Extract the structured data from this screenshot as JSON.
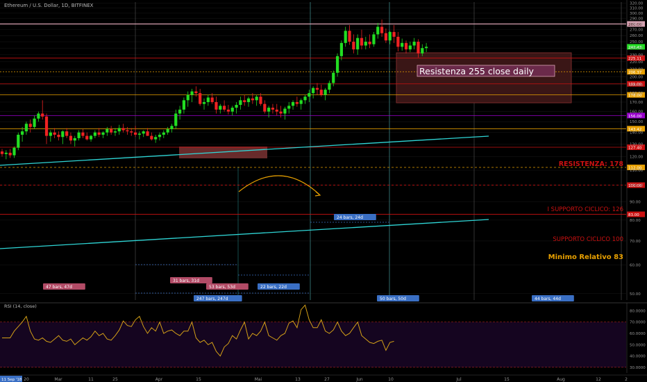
{
  "header": {
    "title": "Ethereum / U.S. Dollar, 1D, BITFINEX"
  },
  "rsi": {
    "label": "RSI (14, close)",
    "ticks": [
      "80.0000",
      "70.0000",
      "60.0000",
      "50.0000",
      "40.0000",
      "30.0000"
    ],
    "tick_values": [
      80,
      70,
      60,
      50,
      40,
      30
    ],
    "band": [
      30,
      70
    ],
    "ylim": [
      25,
      87
    ],
    "values": [
      56,
      56,
      56,
      62,
      66,
      70,
      75,
      62,
      55,
      54,
      56,
      53,
      52,
      55,
      58,
      54,
      53,
      55,
      50,
      53,
      56,
      54,
      57,
      62,
      58,
      60,
      55,
      54,
      58,
      63,
      71,
      67,
      66,
      72,
      75,
      66,
      60,
      65,
      62,
      70,
      60,
      62,
      63,
      60,
      58,
      62,
      62,
      70,
      56,
      52,
      54,
      50,
      52,
      44,
      40,
      48,
      51,
      58,
      55,
      63,
      70,
      55,
      60,
      58,
      62,
      70,
      58,
      56,
      54,
      58,
      60,
      69,
      71,
      65,
      81,
      85,
      72,
      65,
      65,
      72,
      62,
      60,
      63,
      70,
      62,
      58,
      60,
      65,
      70,
      58,
      55,
      52,
      51,
      53,
      54,
      45,
      52,
      53
    ]
  },
  "colors": {
    "up": "#22dd22",
    "down": "#ee2222",
    "trendline": "#2fd6d6",
    "resistance_red": "#cc1111",
    "support_orange": "#e8a000",
    "purple": "#9900cc",
    "pink": "#d9a3b3",
    "grid": "#333333"
  },
  "chart_data": {
    "type": "candlestick",
    "title": "Ethereum / U.S. Dollar, 1D, BITFINEX",
    "ylim": [
      48,
      322
    ],
    "scale": "log",
    "x_ticks": [
      "20",
      "Mar",
      "11",
      "25",
      "Apr",
      "15",
      "Mai",
      "13",
      "27",
      "Jun",
      "10",
      "Jul",
      "15",
      "Aug",
      "12",
      "2"
    ],
    "y_ticks": [
      320,
      310,
      300,
      290,
      280,
      270,
      260,
      250,
      240,
      230,
      220,
      210,
      200,
      190,
      180,
      170,
      160,
      150,
      140,
      130,
      120,
      110,
      100,
      90,
      80,
      70,
      60,
      50
    ],
    "ohlc": [
      [
        124,
        126,
        120,
        122
      ],
      [
        122,
        125,
        118,
        123
      ],
      [
        123,
        126,
        119,
        121
      ],
      [
        121,
        128,
        119,
        127
      ],
      [
        127,
        140,
        125,
        138
      ],
      [
        138,
        145,
        132,
        141
      ],
      [
        141,
        150,
        138,
        148
      ],
      [
        148,
        152,
        140,
        145
      ],
      [
        145,
        156,
        143,
        153
      ],
      [
        153,
        160,
        150,
        158
      ],
      [
        158,
        172,
        152,
        155
      ],
      [
        155,
        158,
        130,
        137
      ],
      [
        137,
        142,
        132,
        140
      ],
      [
        140,
        144,
        135,
        138
      ],
      [
        138,
        141,
        133,
        136
      ],
      [
        136,
        142,
        130,
        141
      ],
      [
        141,
        144,
        135,
        137
      ],
      [
        137,
        140,
        130,
        133
      ],
      [
        133,
        137,
        128,
        135
      ],
      [
        135,
        142,
        133,
        140
      ],
      [
        140,
        143,
        135,
        137
      ],
      [
        137,
        140,
        133,
        134
      ],
      [
        134,
        138,
        132,
        137
      ],
      [
        137,
        142,
        135,
        140
      ],
      [
        140,
        144,
        136,
        138
      ],
      [
        138,
        141,
        135,
        140
      ],
      [
        140,
        145,
        137,
        143
      ],
      [
        143,
        146,
        138,
        140
      ],
      [
        140,
        144,
        137,
        141
      ],
      [
        141,
        147,
        138,
        144
      ],
      [
        144,
        148,
        140,
        142
      ],
      [
        142,
        145,
        138,
        141
      ],
      [
        141,
        144,
        137,
        140
      ],
      [
        140,
        146,
        136,
        138
      ],
      [
        138,
        141,
        134,
        139
      ],
      [
        139,
        142,
        136,
        141
      ],
      [
        141,
        144,
        137,
        137
      ],
      [
        137,
        140,
        133,
        134
      ],
      [
        134,
        138,
        131,
        136
      ],
      [
        136,
        140,
        133,
        138
      ],
      [
        138,
        142,
        135,
        140
      ],
      [
        140,
        145,
        138,
        143
      ],
      [
        143,
        148,
        140,
        146
      ],
      [
        146,
        162,
        143,
        158
      ],
      [
        158,
        166,
        152,
        162
      ],
      [
        162,
        175,
        158,
        172
      ],
      [
        172,
        182,
        165,
        178
      ],
      [
        178,
        185,
        170,
        182
      ],
      [
        182,
        188,
        176,
        180
      ],
      [
        180,
        185,
        166,
        168
      ],
      [
        168,
        174,
        162,
        170
      ],
      [
        170,
        178,
        166,
        175
      ],
      [
        175,
        180,
        168,
        170
      ],
      [
        170,
        176,
        158,
        162
      ],
      [
        162,
        168,
        158,
        166
      ],
      [
        166,
        172,
        160,
        162
      ],
      [
        162,
        167,
        157,
        160
      ],
      [
        160,
        166,
        156,
        164
      ],
      [
        164,
        170,
        158,
        167
      ],
      [
        167,
        176,
        162,
        172
      ],
      [
        172,
        178,
        166,
        170
      ],
      [
        170,
        176,
        165,
        174
      ],
      [
        174,
        180,
        168,
        172
      ],
      [
        172,
        178,
        166,
        176
      ],
      [
        176,
        180,
        166,
        168
      ],
      [
        168,
        172,
        158,
        160
      ],
      [
        160,
        166,
        154,
        164
      ],
      [
        164,
        168,
        158,
        162
      ],
      [
        162,
        168,
        156,
        160
      ],
      [
        160,
        166,
        154,
        158
      ],
      [
        158,
        165,
        152,
        163
      ],
      [
        163,
        170,
        158,
        166
      ],
      [
        166,
        172,
        162,
        170
      ],
      [
        170,
        176,
        165,
        168
      ],
      [
        168,
        174,
        162,
        172
      ],
      [
        172,
        178,
        168,
        176
      ],
      [
        176,
        184,
        170,
        180
      ],
      [
        180,
        188,
        174,
        186
      ],
      [
        186,
        192,
        178,
        184
      ],
      [
        184,
        190,
        176,
        178
      ],
      [
        178,
        186,
        172,
        184
      ],
      [
        184,
        195,
        180,
        192
      ],
      [
        192,
        208,
        188,
        205
      ],
      [
        205,
        232,
        200,
        228
      ],
      [
        228,
        252,
        222,
        248
      ],
      [
        248,
        275,
        242,
        268
      ],
      [
        268,
        278,
        245,
        250
      ],
      [
        250,
        262,
        232,
        238
      ],
      [
        238,
        262,
        230,
        256
      ],
      [
        256,
        270,
        238,
        244
      ],
      [
        244,
        258,
        238,
        250
      ],
      [
        250,
        262,
        240,
        246
      ],
      [
        246,
        266,
        242,
        262
      ],
      [
        262,
        282,
        255,
        275
      ],
      [
        275,
        288,
        258,
        264
      ],
      [
        264,
        272,
        248,
        252
      ],
      [
        252,
        268,
        246,
        266
      ],
      [
        266,
        278,
        248,
        258
      ],
      [
        258,
        266,
        235,
        242
      ],
      [
        242,
        255,
        236,
        248
      ],
      [
        248,
        252,
        232,
        238
      ],
      [
        238,
        250,
        234,
        244
      ],
      [
        244,
        256,
        238,
        250
      ],
      [
        250,
        254,
        226,
        232
      ],
      [
        232,
        246,
        228,
        240
      ],
      [
        240,
        248,
        234,
        242
      ]
    ],
    "levels": [
      {
        "price": 280,
        "label": "280.00",
        "kind": "pink"
      },
      {
        "price": 225.11,
        "label": "225.11",
        "kind": "red"
      },
      {
        "price": 206.37,
        "label": "206.37",
        "kind": "orange_dotted"
      },
      {
        "price": 191,
        "label": "191.00",
        "kind": "red"
      },
      {
        "price": 178,
        "label": "178.00",
        "kind": "orange"
      },
      {
        "price": 156,
        "label": "156.00",
        "kind": "purple"
      },
      {
        "price": 143.42,
        "label": "143.42",
        "kind": "orange"
      },
      {
        "price": 127.4,
        "label": "127.40",
        "kind": "red"
      },
      {
        "price": 112,
        "label": "112.00",
        "kind": "orange_dashed"
      },
      {
        "price": 100,
        "label": "100.00",
        "kind": "red_dashed"
      },
      {
        "price": 83,
        "label": "83.00",
        "kind": "red"
      }
    ],
    "current_price": {
      "price": 242,
      "label": "242.43"
    },
    "annotations": [
      {
        "text": "Resistenza 255 close daily",
        "kind": "box"
      },
      {
        "text": "RESISTENZA: 178",
        "kind": "red_text"
      },
      {
        "text": "I SUPPORTO CICLICO: 126",
        "kind": "red_text"
      },
      {
        "text": "SUPPORTO CICLICO 100",
        "kind": "red_text"
      },
      {
        "text": "Minimo Relativo 83",
        "kind": "orange_text"
      }
    ],
    "bar_labels": [
      {
        "text": "47 bars, 47d",
        "color": "#b24b66"
      },
      {
        "text": "31 bars, 31d",
        "color": "#b24b66"
      },
      {
        "text": "53 bars, 53d",
        "color": "#b24b66"
      },
      {
        "text": "22 bars, 22d",
        "color": "#3a6fc4"
      },
      {
        "text": "24 bars, 24d",
        "color": "#3a6fc4"
      },
      {
        "text": "247 bars, 247d",
        "color": "#3a6fc4"
      },
      {
        "text": "50 bars, 50d",
        "color": "#3a6fc4"
      },
      {
        "text": "44 bars, 44d",
        "color": "#3a6fc4"
      }
    ],
    "date_tag": "11 Sep '18"
  }
}
